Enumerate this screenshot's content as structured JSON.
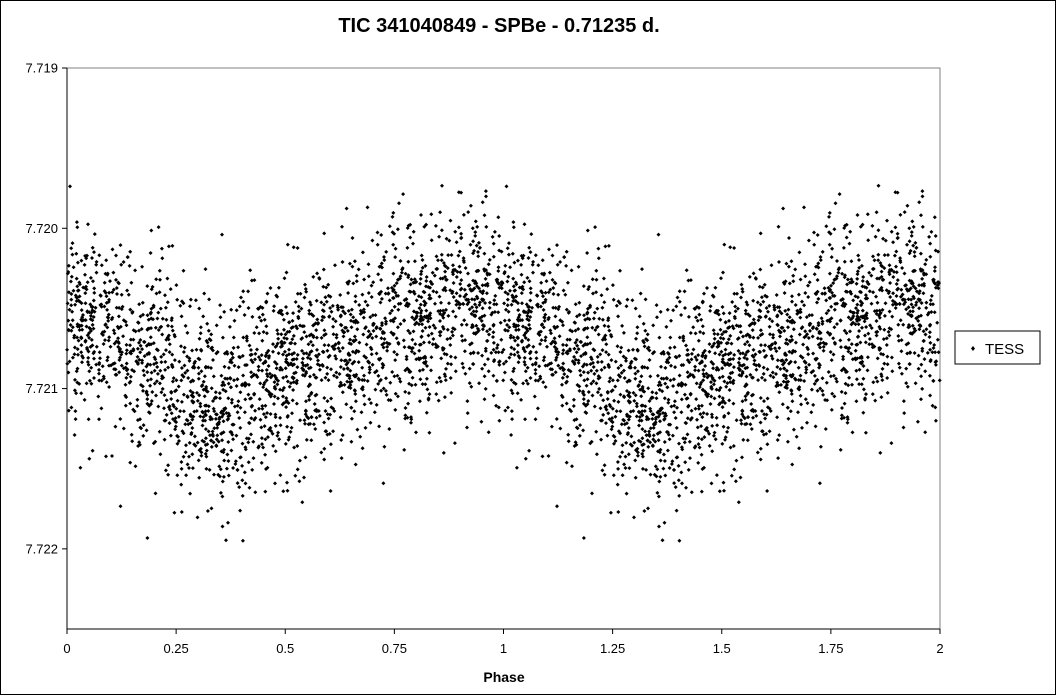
{
  "chart_data": {
    "type": "scatter",
    "title": "TIC 341040849  - SPBe - 0.71235 d.",
    "xlabel": "Phase",
    "ylabel": "",
    "xlim": [
      0,
      2
    ],
    "ylim": [
      7.7225,
      7.719
    ],
    "y_axis_inverted": true,
    "x_ticks": [
      0,
      0.25,
      0.5,
      0.75,
      1,
      1.25,
      1.5,
      1.75,
      2
    ],
    "x_tick_labels": [
      "0",
      "0.25",
      "0.5",
      "0.75",
      "1",
      "1.25",
      "1.5",
      "1.75",
      "2"
    ],
    "y_ticks": [
      7.719,
      7.72,
      7.721,
      7.722
    ],
    "y_tick_labels": [
      "7.719",
      "7.720",
      "7.721",
      "7.722"
    ],
    "grid": false,
    "legend_position": "right",
    "series": [
      {
        "name": "TESS",
        "color": "#000000",
        "marker": "diamond",
        "profile": {
          "phase": [
            0,
            0.1,
            0.2,
            0.3,
            0.35,
            0.4,
            0.5,
            0.6,
            0.7,
            0.8,
            0.9,
            0.95,
            1.0
          ],
          "mean_value": [
            7.72053,
            7.72067,
            7.72085,
            7.72103,
            7.7211,
            7.72103,
            7.72088,
            7.72077,
            7.7207,
            7.72058,
            7.72042,
            7.72043,
            7.72053
          ]
        },
        "scatter_sigma": 0.00031,
        "outlier_range": [
          7.71955,
          7.72195
        ],
        "points_per_cycle": 2200
      }
    ]
  }
}
